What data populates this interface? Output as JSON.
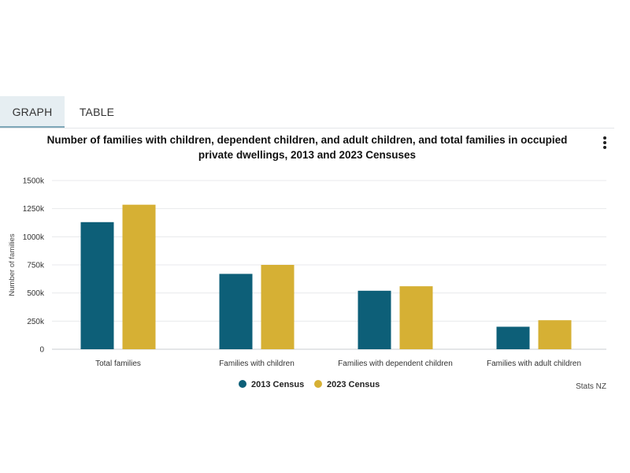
{
  "tabs": [
    {
      "label": "GRAPH",
      "active": true
    },
    {
      "label": "TABLE",
      "active": false
    }
  ],
  "menu_icon": "more-vertical-icon",
  "credit": "Stats NZ",
  "chart_data": {
    "type": "bar",
    "title": "Number of families with children, dependent children, and adult children, and total families in occupied private dwellings, 2013 and 2023 Censuses",
    "xlabel": "",
    "ylabel": "Number of families",
    "ylim": [
      0,
      1500000
    ],
    "yticks": [
      0,
      250000,
      500000,
      750000,
      1000000,
      1250000,
      1500000
    ],
    "ytick_labels": [
      "0",
      "250k",
      "500k",
      "750k",
      "1000k",
      "1250k",
      "1500k"
    ],
    "grid": true,
    "legend_position": "bottom-center",
    "categories": [
      "Total families",
      "Families with children",
      "Families with dependent children",
      "Families with adult children"
    ],
    "series": [
      {
        "name": "2013 Census",
        "color": "#0d5f78",
        "values": [
          1130000,
          670000,
          520000,
          200000
        ]
      },
      {
        "name": "2023 Census",
        "color": "#d6b034",
        "values": [
          1285000,
          750000,
          560000,
          258000
        ]
      }
    ]
  }
}
